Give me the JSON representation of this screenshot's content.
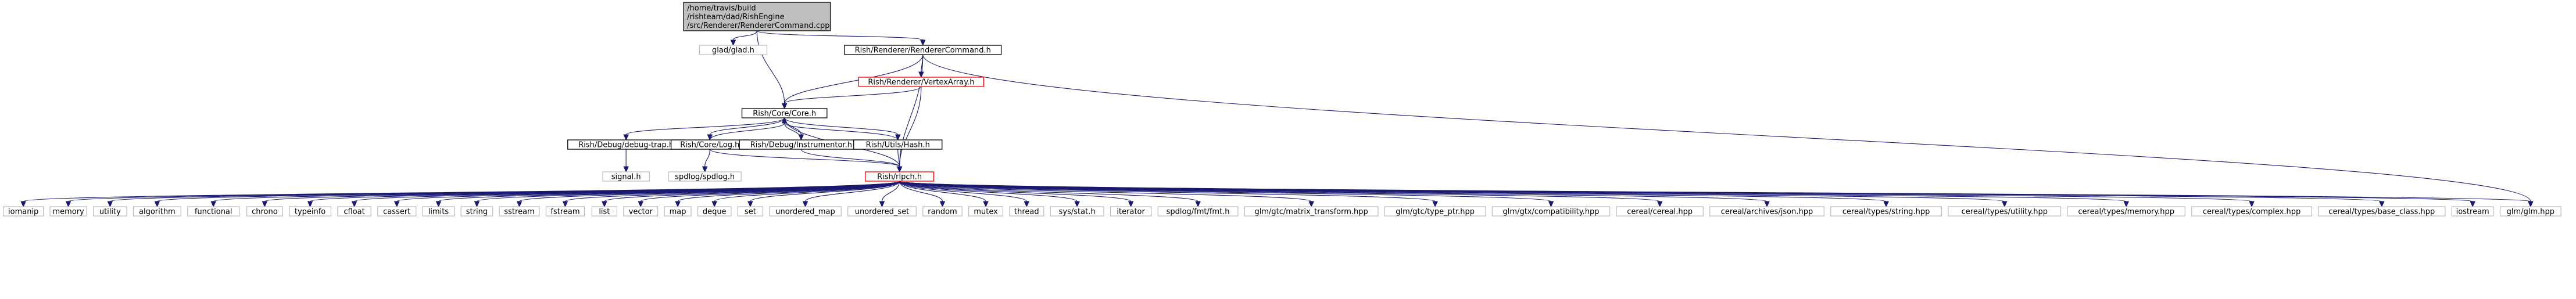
{
  "colors": {
    "edge": "#191970",
    "root_fill": "#bfbfbf",
    "border_black": "#000000",
    "border_gray": "#bfbfbf",
    "border_red": "#ff0000",
    "text": "#000000"
  },
  "graph": {
    "nodes": [
      {
        "id": "root",
        "lines": [
          "/home/travis/build",
          "/rishteam/dad/RishEngine",
          "/src/Renderer/RendererCommand.cpp"
        ],
        "style": "root"
      },
      {
        "id": "glad",
        "lines": [
          "glad/glad.h"
        ],
        "style": "gray"
      },
      {
        "id": "rendcmd_h",
        "lines": [
          "Rish/Renderer/RendererCommand.h"
        ],
        "style": "black"
      },
      {
        "id": "vertexarray",
        "lines": [
          "Rish/Renderer/VertexArray.h"
        ],
        "style": "red"
      },
      {
        "id": "core",
        "lines": [
          "Rish/Core/Core.h"
        ],
        "style": "black"
      },
      {
        "id": "debugtrap",
        "lines": [
          "Rish/Debug/debug-trap.h"
        ],
        "style": "black"
      },
      {
        "id": "log",
        "lines": [
          "Rish/Core/Log.h"
        ],
        "style": "black"
      },
      {
        "id": "instrumentor",
        "lines": [
          "Rish/Debug/Instrumentor.h"
        ],
        "style": "black"
      },
      {
        "id": "hash",
        "lines": [
          "Rish/Utils/Hash.h"
        ],
        "style": "black"
      },
      {
        "id": "signal",
        "lines": [
          "signal.h"
        ],
        "style": "gray"
      },
      {
        "id": "spdlog_h",
        "lines": [
          "spdlog/spdlog.h"
        ],
        "style": "gray"
      },
      {
        "id": "rishpch",
        "lines": [
          "Rish/rlpch.h"
        ],
        "style": "red"
      },
      {
        "id": "iomanip",
        "lines": [
          "iomanip"
        ],
        "style": "gray"
      },
      {
        "id": "memory",
        "lines": [
          "memory"
        ],
        "style": "gray"
      },
      {
        "id": "utility",
        "lines": [
          "utility"
        ],
        "style": "gray"
      },
      {
        "id": "algorithm",
        "lines": [
          "algorithm"
        ],
        "style": "gray"
      },
      {
        "id": "functional",
        "lines": [
          "functional"
        ],
        "style": "gray"
      },
      {
        "id": "chrono",
        "lines": [
          "chrono"
        ],
        "style": "gray"
      },
      {
        "id": "typeinfo",
        "lines": [
          "typeinfo"
        ],
        "style": "gray"
      },
      {
        "id": "cfloat",
        "lines": [
          "cfloat"
        ],
        "style": "gray"
      },
      {
        "id": "cassert",
        "lines": [
          "cassert"
        ],
        "style": "gray"
      },
      {
        "id": "limits",
        "lines": [
          "limits"
        ],
        "style": "gray"
      },
      {
        "id": "string",
        "lines": [
          "string"
        ],
        "style": "gray"
      },
      {
        "id": "sstream",
        "lines": [
          "sstream"
        ],
        "style": "gray"
      },
      {
        "id": "fstream",
        "lines": [
          "fstream"
        ],
        "style": "gray"
      },
      {
        "id": "list",
        "lines": [
          "list"
        ],
        "style": "gray"
      },
      {
        "id": "vector",
        "lines": [
          "vector"
        ],
        "style": "gray"
      },
      {
        "id": "map",
        "lines": [
          "map"
        ],
        "style": "gray"
      },
      {
        "id": "deque",
        "lines": [
          "deque"
        ],
        "style": "gray"
      },
      {
        "id": "set",
        "lines": [
          "set"
        ],
        "style": "gray"
      },
      {
        "id": "unordered_map",
        "lines": [
          "unordered_map"
        ],
        "style": "gray"
      },
      {
        "id": "unordered_set",
        "lines": [
          "unordered_set"
        ],
        "style": "gray"
      },
      {
        "id": "random",
        "lines": [
          "random"
        ],
        "style": "gray"
      },
      {
        "id": "mutex",
        "lines": [
          "mutex"
        ],
        "style": "gray"
      },
      {
        "id": "thread",
        "lines": [
          "thread"
        ],
        "style": "gray"
      },
      {
        "id": "sys_stat",
        "lines": [
          "sys/stat.h"
        ],
        "style": "gray"
      },
      {
        "id": "iterator",
        "lines": [
          "iterator"
        ],
        "style": "gray"
      },
      {
        "id": "fmt",
        "lines": [
          "spdlog/fmt/fmt.h"
        ],
        "style": "gray"
      },
      {
        "id": "glm_mt",
        "lines": [
          "glm/gtc/matrix_transform.hpp"
        ],
        "style": "gray"
      },
      {
        "id": "glm_tp",
        "lines": [
          "glm/gtc/type_ptr.hpp"
        ],
        "style": "gray"
      },
      {
        "id": "glm_compat",
        "lines": [
          "glm/gtx/compatibility.hpp"
        ],
        "style": "gray"
      },
      {
        "id": "cereal",
        "lines": [
          "cereal/cereal.hpp"
        ],
        "style": "gray"
      },
      {
        "id": "cereal_json",
        "lines": [
          "cereal/archives/json.hpp"
        ],
        "style": "gray"
      },
      {
        "id": "cereal_string",
        "lines": [
          "cereal/types/string.hpp"
        ],
        "style": "gray"
      },
      {
        "id": "cereal_utility",
        "lines": [
          "cereal/types/utility.hpp"
        ],
        "style": "gray"
      },
      {
        "id": "cereal_memory",
        "lines": [
          "cereal/types/memory.hpp"
        ],
        "style": "gray"
      },
      {
        "id": "cereal_complex",
        "lines": [
          "cereal/types/complex.hpp"
        ],
        "style": "gray"
      },
      {
        "id": "cereal_base",
        "lines": [
          "cereal/types/base_class.hpp"
        ],
        "style": "gray"
      },
      {
        "id": "iostream",
        "lines": [
          "iostream"
        ],
        "style": "gray"
      },
      {
        "id": "glm",
        "lines": [
          "glm/glm.hpp"
        ],
        "style": "gray"
      }
    ],
    "edges": [
      [
        "root",
        "glad"
      ],
      [
        "root",
        "rendcmd_h"
      ],
      [
        "root",
        "core"
      ],
      [
        "rendcmd_h",
        "vertexarray"
      ],
      [
        "rendcmd_h",
        "core"
      ],
      [
        "rendcmd_h",
        "rishpch"
      ],
      [
        "rendcmd_h",
        "glm"
      ],
      [
        "vertexarray",
        "core"
      ],
      [
        "vertexarray",
        "rishpch"
      ],
      [
        "core",
        "debugtrap"
      ],
      [
        "core",
        "log"
      ],
      [
        "core",
        "instrumentor"
      ],
      [
        "core",
        "hash"
      ],
      [
        "core",
        "rishpch"
      ],
      [
        "log",
        "core"
      ],
      [
        "instrumentor",
        "core"
      ],
      [
        "hash",
        "core"
      ],
      [
        "debugtrap",
        "signal"
      ],
      [
        "log",
        "spdlog_h"
      ],
      [
        "log",
        "rishpch"
      ],
      [
        "instrumentor",
        "rishpch"
      ],
      [
        "hash",
        "rishpch"
      ],
      [
        "rishpch",
        "iomanip"
      ],
      [
        "rishpch",
        "memory"
      ],
      [
        "rishpch",
        "utility"
      ],
      [
        "rishpch",
        "algorithm"
      ],
      [
        "rishpch",
        "functional"
      ],
      [
        "rishpch",
        "chrono"
      ],
      [
        "rishpch",
        "typeinfo"
      ],
      [
        "rishpch",
        "cfloat"
      ],
      [
        "rishpch",
        "cassert"
      ],
      [
        "rishpch",
        "limits"
      ],
      [
        "rishpch",
        "string"
      ],
      [
        "rishpch",
        "sstream"
      ],
      [
        "rishpch",
        "fstream"
      ],
      [
        "rishpch",
        "list"
      ],
      [
        "rishpch",
        "vector"
      ],
      [
        "rishpch",
        "map"
      ],
      [
        "rishpch",
        "deque"
      ],
      [
        "rishpch",
        "set"
      ],
      [
        "rishpch",
        "unordered_map"
      ],
      [
        "rishpch",
        "unordered_set"
      ],
      [
        "rishpch",
        "random"
      ],
      [
        "rishpch",
        "mutex"
      ],
      [
        "rishpch",
        "thread"
      ],
      [
        "rishpch",
        "sys_stat"
      ],
      [
        "rishpch",
        "iterator"
      ],
      [
        "rishpch",
        "fmt"
      ],
      [
        "rishpch",
        "glm_mt"
      ],
      [
        "rishpch",
        "glm_tp"
      ],
      [
        "rishpch",
        "glm_compat"
      ],
      [
        "rishpch",
        "cereal"
      ],
      [
        "rishpch",
        "cereal_json"
      ],
      [
        "rishpch",
        "cereal_string"
      ],
      [
        "rishpch",
        "cereal_utility"
      ],
      [
        "rishpch",
        "cereal_memory"
      ],
      [
        "rishpch",
        "cereal_complex"
      ],
      [
        "rishpch",
        "cereal_base"
      ],
      [
        "rishpch",
        "iostream"
      ],
      [
        "rishpch",
        "glm"
      ]
    ]
  }
}
